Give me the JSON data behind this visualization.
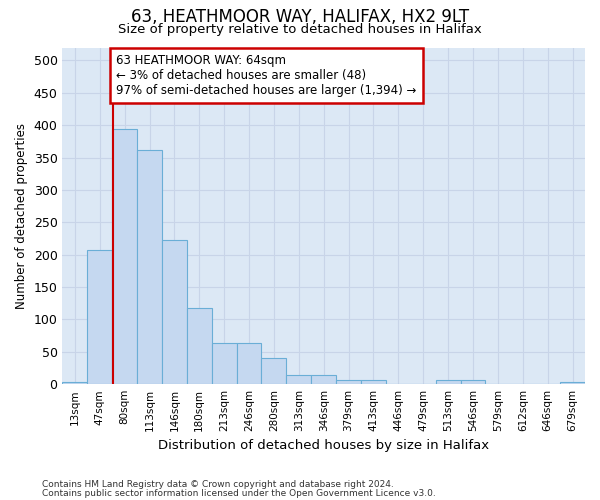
{
  "title": "63, HEATHMOOR WAY, HALIFAX, HX2 9LT",
  "subtitle": "Size of property relative to detached houses in Halifax",
  "xlabel": "Distribution of detached houses by size in Halifax",
  "ylabel": "Number of detached properties",
  "bar_labels": [
    "13sqm",
    "47sqm",
    "80sqm",
    "113sqm",
    "146sqm",
    "180sqm",
    "213sqm",
    "246sqm",
    "280sqm",
    "313sqm",
    "346sqm",
    "379sqm",
    "413sqm",
    "446sqm",
    "479sqm",
    "513sqm",
    "546sqm",
    "579sqm",
    "612sqm",
    "646sqm",
    "679sqm"
  ],
  "bar_values": [
    3,
    207,
    394,
    362,
    222,
    118,
    64,
    64,
    40,
    14,
    14,
    7,
    7,
    0,
    0,
    7,
    7,
    0,
    0,
    0,
    3
  ],
  "bar_color": "#c5d8f0",
  "bar_edgecolor": "#6aaed6",
  "annotation_line1": "63 HEATHMOOR WAY: 64sqm",
  "annotation_line2": "← 3% of detached houses are smaller (48)",
  "annotation_line3": "97% of semi-detached houses are larger (1,394) →",
  "annotation_box_color": "#ffffff",
  "annotation_box_edgecolor": "#cc0000",
  "redline_color": "#cc0000",
  "ylim": [
    0,
    520
  ],
  "yticks": [
    0,
    50,
    100,
    150,
    200,
    250,
    300,
    350,
    400,
    450,
    500
  ],
  "grid_color": "#c8d4e8",
  "bg_color": "#dce8f5",
  "footer1": "Contains HM Land Registry data © Crown copyright and database right 2024.",
  "footer2": "Contains public sector information licensed under the Open Government Licence v3.0."
}
